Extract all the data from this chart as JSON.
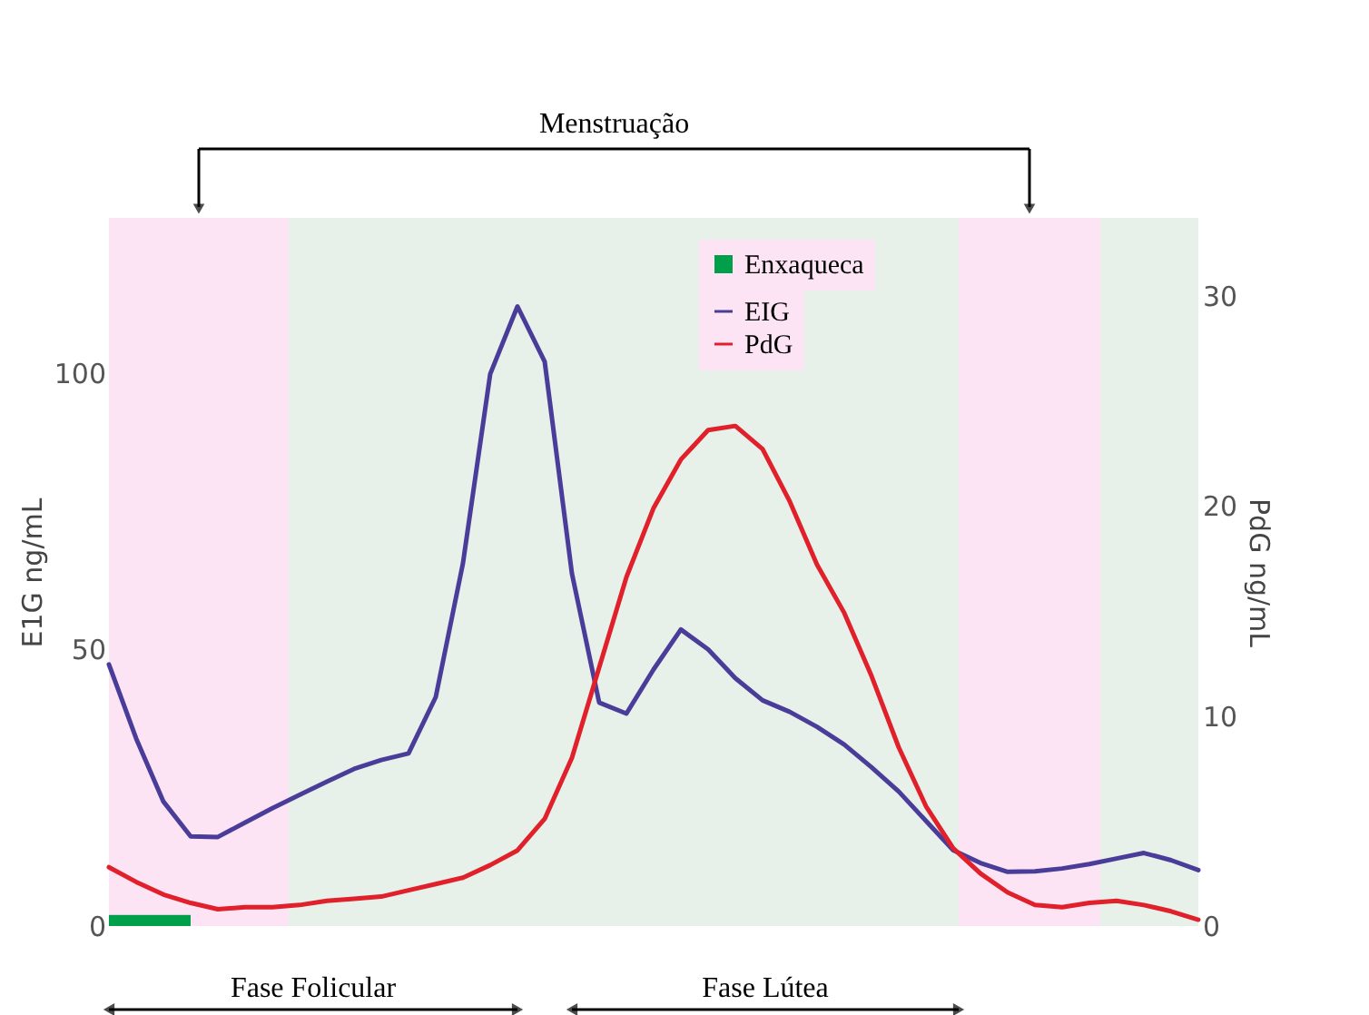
{
  "chart_data": {
    "type": "line",
    "categories": [
      null,
      null,
      null,
      null,
      null,
      null,
      null,
      null,
      null,
      null,
      null,
      null,
      null,
      null,
      null,
      null,
      null,
      null,
      null,
      null,
      null,
      null,
      null,
      null,
      null,
      null,
      null,
      null,
      null,
      null,
      null,
      null,
      null,
      null,
      null,
      null,
      null,
      null,
      null,
      null,
      null
    ],
    "ylim": [
      0,
      128
    ],
    "yticks": [
      0,
      50,
      100
    ],
    "y2lim": [
      0,
      33.7
    ],
    "y2ticks": [
      0,
      10,
      20,
      30
    ],
    "ylabel": "E1G ng/mL",
    "y2label": "PdG ng/mL",
    "legend": "top",
    "grid": false,
    "series": [
      {
        "name": "EIG",
        "color": "#4a3d99",
        "values": [
          47.3,
          33.9,
          22.5,
          16.2,
          16.1,
          18.7,
          21.3,
          23.7,
          26.1,
          28.4,
          30.0,
          31.2,
          41.4,
          65.6,
          99.8,
          112,
          102,
          63.7,
          40.4,
          38.4,
          46.4,
          53.6,
          50,
          44.8,
          40.8,
          38.7,
          36,
          32.8,
          28.7,
          24.3,
          19,
          13.7,
          11.4,
          9.8,
          9.9,
          10.4,
          11.2,
          12.2,
          13.2,
          11.9,
          10.1
        ]
      },
      {
        "name": "Enxaqueca",
        "type": "bar",
        "color": "#00a04a",
        "values": [
          2,
          2,
          2,
          null,
          null,
          null,
          null,
          null,
          null,
          null,
          null,
          null,
          null,
          null,
          null,
          null,
          null,
          null,
          null,
          null,
          null,
          null,
          null,
          null,
          null,
          null,
          null,
          null,
          null,
          null,
          null,
          null,
          null,
          null,
          null,
          null,
          null,
          null,
          null,
          null,
          null
        ]
      },
      {
        "name": "PdG",
        "color": "#e0202a",
        "axis": "y2",
        "values": [
          2.8,
          2.1,
          1.5,
          1.1,
          0.8,
          0.9,
          0.9,
          1.0,
          1.2,
          1.3,
          1.4,
          1.7,
          2.0,
          2.3,
          2.9,
          3.6,
          5.1,
          8.0,
          12.3,
          16.6,
          19.9,
          22.2,
          23.6,
          23.8,
          22.7,
          20.2,
          17.2,
          14.9,
          11.9,
          8.5,
          5.7,
          3.7,
          2.5,
          1.6,
          1.0,
          0.9,
          1.1,
          1.2,
          1.0,
          0.7,
          0.3
        ]
      }
    ],
    "annotations": [
      "Menstruação",
      "Fase Folicular",
      "Fase Lútea"
    ]
  }
}
